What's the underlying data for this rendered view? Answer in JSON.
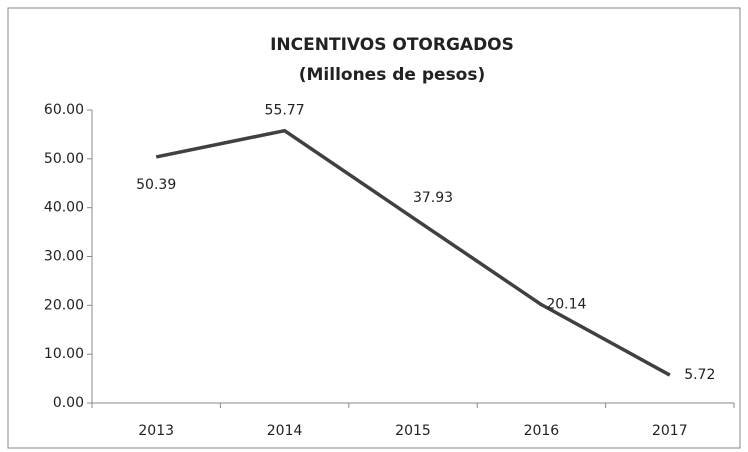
{
  "chart_data": {
    "type": "line",
    "title": "INCENTIVOS  OTORGADOS",
    "subtitle": "(Millones de pesos)",
    "categories": [
      "2013",
      "2014",
      "2015",
      "2016",
      "2017"
    ],
    "values": [
      50.39,
      55.77,
      37.93,
      20.14,
      5.72
    ],
    "color": "#404040",
    "ylim": [
      0,
      60
    ],
    "yticks": [
      {
        "value": 0,
        "label": "0.00"
      },
      {
        "value": 10,
        "label": "10.00"
      },
      {
        "value": 20,
        "label": "20.00"
      },
      {
        "value": 30,
        "label": "30.00"
      },
      {
        "value": 40,
        "label": "40.00"
      },
      {
        "value": 50,
        "label": "50.00"
      },
      {
        "value": 60,
        "label": "60.00"
      }
    ],
    "grid": false,
    "data_labels": true
  }
}
